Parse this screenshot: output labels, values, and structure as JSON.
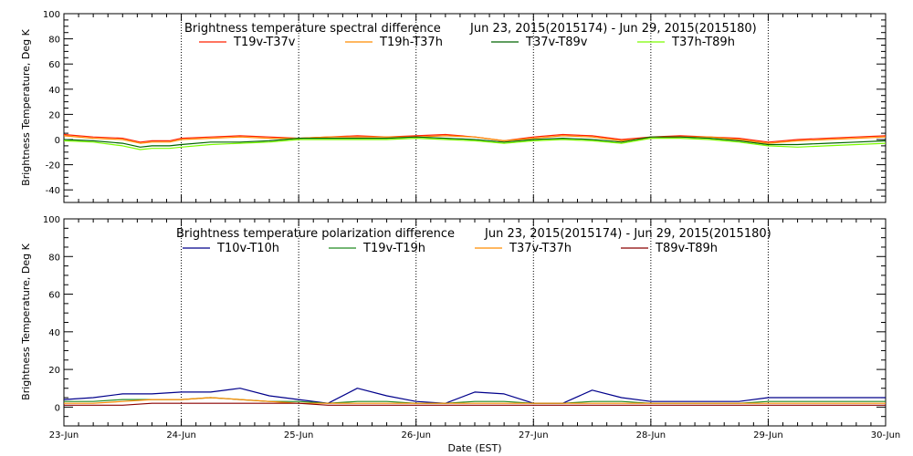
{
  "x_tick_labels": [
    "23-Jun",
    "24-Jun",
    "25-Jun",
    "26-Jun",
    "27-Jun",
    "28-Jun",
    "29-Jun",
    "30-Jun"
  ],
  "x_axis_label": "Date (EST)",
  "chart_data": [
    {
      "type": "line",
      "title": "Brightness temperature spectral difference",
      "date_range": "Jun 23, 2015(2015174) - Jun 29, 2015(2015180)",
      "xlabel": "Date (EST)",
      "ylabel": "Brightness Temperature, Deg K",
      "xlim": [
        0,
        7
      ],
      "ylim": [
        -50,
        100
      ],
      "yticks": [
        -40,
        -20,
        0,
        20,
        40,
        60,
        80,
        100
      ],
      "grid": "vertical dotted lines at each day",
      "x": [
        0,
        0.25,
        0.5,
        0.65,
        0.75,
        0.9,
        1.0,
        1.25,
        1.5,
        1.75,
        2.0,
        2.25,
        2.5,
        2.75,
        3.0,
        3.25,
        3.5,
        3.75,
        4.0,
        4.25,
        4.5,
        4.75,
        5.0,
        5.25,
        5.5,
        5.75,
        6.0,
        6.25,
        6.5,
        6.75,
        7.0
      ],
      "series": [
        {
          "name": "T19v-T37v",
          "color": "#ff2000",
          "values": [
            4,
            2,
            1,
            -2,
            -1,
            -1,
            1,
            2,
            3,
            2,
            1,
            2,
            3,
            2,
            3,
            4,
            2,
            -1,
            2,
            4,
            3,
            0,
            2,
            3,
            2,
            1,
            -2,
            0,
            1,
            2,
            3
          ]
        },
        {
          "name": "T19h-T37h",
          "color": "#ff8c00",
          "values": [
            3,
            1,
            0,
            -3,
            -2,
            -2,
            0,
            1,
            2,
            1,
            1,
            2,
            2,
            2,
            2,
            3,
            2,
            -1,
            1,
            3,
            2,
            -1,
            1,
            2,
            2,
            0,
            -3,
            -1,
            0,
            1,
            2
          ]
        },
        {
          "name": "T37v-T89v",
          "color": "#006400",
          "values": [
            0,
            -1,
            -3,
            -6,
            -5,
            -5,
            -4,
            -2,
            -2,
            -1,
            1,
            1,
            1,
            1,
            2,
            1,
            0,
            -2,
            0,
            1,
            0,
            -2,
            2,
            2,
            1,
            -1,
            -4,
            -4,
            -3,
            -2,
            -1
          ]
        },
        {
          "name": "T37h-T89h",
          "color": "#7cfc00",
          "values": [
            -1,
            -2,
            -5,
            -8,
            -7,
            -7,
            -6,
            -4,
            -3,
            -2,
            0,
            0,
            0,
            0,
            1,
            0,
            -1,
            -3,
            -1,
            0,
            -1,
            -3,
            1,
            1,
            0,
            -2,
            -5,
            -6,
            -5,
            -4,
            -3
          ]
        }
      ]
    },
    {
      "type": "line",
      "title": "Brightness temperature polarization difference",
      "date_range": "Jun 23, 2015(2015174) - Jun 29, 2015(2015180)",
      "xlabel": "Date (EST)",
      "ylabel": "Brightness Temperature, Deg K",
      "xlim": [
        0,
        7
      ],
      "ylim": [
        -10,
        100
      ],
      "yticks": [
        0,
        20,
        40,
        60,
        80,
        100
      ],
      "grid": "vertical dotted lines at each day",
      "x": [
        0,
        0.25,
        0.5,
        0.75,
        1.0,
        1.25,
        1.5,
        1.75,
        2.0,
        2.25,
        2.5,
        2.75,
        3.0,
        3.25,
        3.5,
        3.75,
        4.0,
        4.25,
        4.5,
        4.75,
        5.0,
        5.25,
        5.5,
        5.75,
        6.0,
        6.25,
        6.5,
        6.75,
        7.0
      ],
      "series": [
        {
          "name": "T10v-T10h",
          "color": "#00008b",
          "values": [
            4,
            5,
            7,
            7,
            8,
            8,
            10,
            6,
            4,
            2,
            10,
            6,
            3,
            2,
            8,
            7,
            2,
            2,
            9,
            5,
            3,
            3,
            3,
            3,
            5,
            5,
            5,
            5,
            5
          ]
        },
        {
          "name": "T19v-T19h",
          "color": "#228b22",
          "values": [
            3,
            3,
            4,
            4,
            4,
            5,
            4,
            3,
            3,
            2,
            3,
            3,
            2,
            2,
            3,
            3,
            2,
            2,
            3,
            3,
            2,
            2,
            2,
            2,
            3,
            3,
            3,
            3,
            3
          ]
        },
        {
          "name": "T37v-T37h",
          "color": "#ff8c00",
          "values": [
            2,
            2,
            3,
            4,
            4,
            5,
            4,
            3,
            2,
            2,
            2,
            2,
            2,
            2,
            2,
            2,
            2,
            2,
            2,
            2,
            2,
            2,
            2,
            2,
            2,
            2,
            2,
            2,
            2
          ]
        },
        {
          "name": "T89v-T89h",
          "color": "#8b0000",
          "values": [
            1,
            1,
            1,
            2,
            2,
            2,
            2,
            2,
            2,
            1,
            1,
            1,
            1,
            1,
            1,
            1,
            1,
            1,
            1,
            1,
            1,
            1,
            1,
            1,
            1,
            1,
            1,
            1,
            1
          ]
        }
      ]
    }
  ]
}
